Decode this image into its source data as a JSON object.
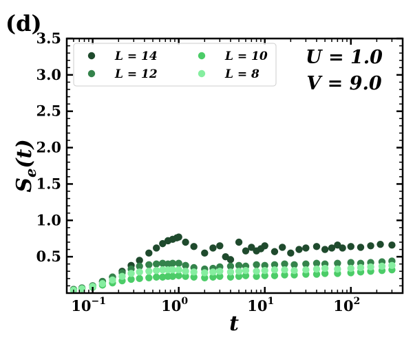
{
  "chart_data": {
    "type": "scatter",
    "panel_label": "(d)",
    "xlabel": "t",
    "ylabel": "S_e(t)",
    "xscale": "log",
    "xlim": [
      0.05,
      400
    ],
    "ylim": [
      0.0,
      3.5
    ],
    "x_ticks": [
      {
        "value": 0.1,
        "base": "10",
        "exp": "−1"
      },
      {
        "value": 1,
        "base": "10",
        "exp": "0"
      },
      {
        "value": 10,
        "base": "10",
        "exp": "1"
      },
      {
        "value": 100,
        "base": "10",
        "exp": "2"
      }
    ],
    "y_ticks": [
      "0.5",
      "1.0",
      "1.5",
      "2.0",
      "2.5",
      "3.0",
      "3.5"
    ],
    "annotations": [
      "U = 1.0",
      "V = 9.0"
    ],
    "legend_position": "top-left",
    "grid": false,
    "series": [
      {
        "name": "L = 14",
        "color": "#1f4a2d",
        "x": [
          0.06,
          0.075,
          0.1,
          0.13,
          0.17,
          0.22,
          0.28,
          0.35,
          0.45,
          0.55,
          0.65,
          0.75,
          0.85,
          0.95,
          1.0,
          1.2,
          1.5,
          2.0,
          2.5,
          3.0,
          3.5,
          4.0,
          5.0,
          6.0,
          7.0,
          8.0,
          9.0,
          10,
          13,
          16,
          20,
          25,
          30,
          40,
          50,
          60,
          70,
          80,
          100,
          130,
          170,
          220,
          300
        ],
        "y": [
          0.05,
          0.07,
          0.1,
          0.16,
          0.22,
          0.3,
          0.38,
          0.45,
          0.55,
          0.62,
          0.68,
          0.72,
          0.74,
          0.76,
          0.77,
          0.7,
          0.64,
          0.55,
          0.62,
          0.65,
          0.5,
          0.46,
          0.7,
          0.58,
          0.63,
          0.58,
          0.61,
          0.65,
          0.57,
          0.63,
          0.55,
          0.6,
          0.62,
          0.64,
          0.6,
          0.62,
          0.66,
          0.62,
          0.64,
          0.63,
          0.65,
          0.67,
          0.66
        ]
      },
      {
        "name": "L = 12",
        "color": "#34834b",
        "x": [
          0.06,
          0.075,
          0.1,
          0.13,
          0.17,
          0.22,
          0.28,
          0.35,
          0.45,
          0.55,
          0.65,
          0.75,
          0.85,
          1.0,
          1.2,
          1.5,
          2.0,
          2.5,
          3.0,
          4.0,
          5.0,
          6.0,
          8.0,
          10,
          13,
          17,
          22,
          30,
          40,
          50,
          70,
          100,
          130,
          170,
          230,
          300
        ],
        "y": [
          0.05,
          0.07,
          0.1,
          0.16,
          0.22,
          0.28,
          0.33,
          0.37,
          0.39,
          0.4,
          0.41,
          0.4,
          0.41,
          0.41,
          0.38,
          0.35,
          0.33,
          0.34,
          0.36,
          0.37,
          0.38,
          0.37,
          0.39,
          0.38,
          0.39,
          0.4,
          0.39,
          0.4,
          0.41,
          0.4,
          0.41,
          0.42,
          0.41,
          0.42,
          0.43,
          0.44
        ]
      },
      {
        "name": "L = 10",
        "color": "#4ccc68",
        "x": [
          0.06,
          0.075,
          0.1,
          0.13,
          0.17,
          0.22,
          0.28,
          0.35,
          0.45,
          0.55,
          0.65,
          0.75,
          0.85,
          1.0,
          1.2,
          1.5,
          2.0,
          2.5,
          3.0,
          4.0,
          5.0,
          6.0,
          8.0,
          10,
          13,
          17,
          22,
          30,
          40,
          50,
          70,
          100,
          130,
          170,
          230,
          300
        ],
        "y": [
          0.04,
          0.06,
          0.08,
          0.11,
          0.14,
          0.17,
          0.19,
          0.2,
          0.21,
          0.22,
          0.22,
          0.23,
          0.23,
          0.24,
          0.23,
          0.22,
          0.21,
          0.22,
          0.23,
          0.22,
          0.23,
          0.24,
          0.23,
          0.24,
          0.24,
          0.25,
          0.25,
          0.26,
          0.26,
          0.27,
          0.27,
          0.28,
          0.29,
          0.3,
          0.31,
          0.32
        ]
      },
      {
        "name": "L = 8",
        "color": "#86eea0",
        "x": [
          0.06,
          0.075,
          0.1,
          0.13,
          0.17,
          0.22,
          0.28,
          0.35,
          0.45,
          0.55,
          0.65,
          0.75,
          0.85,
          1.0,
          1.2,
          1.5,
          2.0,
          2.5,
          3.0,
          4.0,
          5.0,
          6.0,
          8.0,
          10,
          13,
          17,
          22,
          30,
          40,
          50,
          70,
          100,
          130,
          170,
          230,
          300
        ],
        "y": [
          0.04,
          0.06,
          0.09,
          0.13,
          0.18,
          0.23,
          0.27,
          0.29,
          0.3,
          0.31,
          0.32,
          0.32,
          0.32,
          0.32,
          0.3,
          0.29,
          0.28,
          0.29,
          0.3,
          0.29,
          0.3,
          0.31,
          0.3,
          0.31,
          0.32,
          0.32,
          0.31,
          0.32,
          0.33,
          0.34,
          0.33,
          0.34,
          0.35,
          0.36,
          0.37,
          0.38
        ]
      }
    ]
  }
}
